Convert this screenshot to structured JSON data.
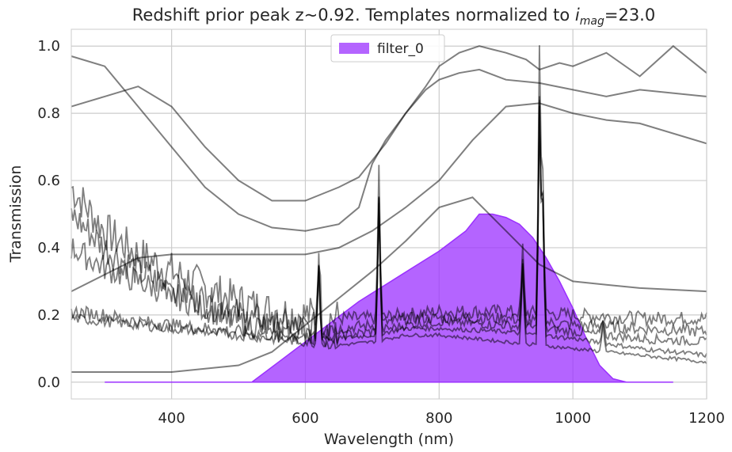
{
  "chart_data": {
    "type": "area",
    "title": "Redshift prior peak z~0.92. Templates normalized to ",
    "title_math_base": "i",
    "title_math_sub": "mag",
    "title_suffix": "=23.0",
    "xlabel": "Wavelength (nm)",
    "ylabel": "Transmission",
    "xlim": [
      250,
      1200
    ],
    "ylim": [
      -0.05,
      1.05
    ],
    "xticks": [
      400,
      600,
      800,
      1000,
      1200
    ],
    "yticks": [
      0.0,
      0.2,
      0.4,
      0.6,
      0.8,
      1.0
    ],
    "xtick_labels": [
      "400",
      "600",
      "800",
      "1000",
      "1200"
    ],
    "ytick_labels": [
      "0.0",
      "0.2",
      "0.4",
      "0.6",
      "0.8",
      "1.0"
    ],
    "grid": true,
    "legend": {
      "position": "top-center",
      "entries": [
        "filter_0"
      ]
    },
    "filter": {
      "name": "filter_0",
      "color": "#9b30ff",
      "x": [
        300,
        520,
        560,
        600,
        640,
        680,
        720,
        760,
        800,
        840,
        860,
        880,
        900,
        920,
        940,
        960,
        980,
        1000,
        1020,
        1040,
        1060,
        1080,
        1100,
        1150
      ],
      "y": [
        0.0,
        0.0,
        0.06,
        0.12,
        0.18,
        0.24,
        0.29,
        0.34,
        0.39,
        0.45,
        0.5,
        0.5,
        0.49,
        0.47,
        0.43,
        0.37,
        0.3,
        0.22,
        0.13,
        0.05,
        0.01,
        0.0,
        0.0,
        0.0
      ]
    },
    "templates": {
      "color": "#000000",
      "opacity": 0.5,
      "series": [
        {
          "x": [
            250,
            300,
            350,
            400,
            450,
            500,
            550,
            600,
            650,
            680,
            700,
            720,
            750,
            780,
            800,
            830,
            860,
            880,
            900,
            930,
            950,
            980,
            1000,
            1050,
            1100,
            1150,
            1200
          ],
          "y": [
            0.97,
            0.94,
            0.82,
            0.7,
            0.58,
            0.5,
            0.46,
            0.45,
            0.47,
            0.52,
            0.65,
            0.72,
            0.8,
            0.88,
            0.94,
            0.98,
            1.0,
            0.99,
            0.98,
            0.96,
            0.93,
            0.95,
            0.94,
            0.98,
            0.91,
            1.0,
            0.92
          ]
        },
        {
          "x": [
            250,
            300,
            350,
            400,
            450,
            500,
            550,
            600,
            650,
            680,
            700,
            720,
            750,
            780,
            800,
            830,
            860,
            900,
            950,
            1000,
            1050,
            1100,
            1200
          ],
          "y": [
            0.82,
            0.85,
            0.88,
            0.82,
            0.7,
            0.6,
            0.54,
            0.54,
            0.58,
            0.61,
            0.66,
            0.71,
            0.8,
            0.87,
            0.9,
            0.92,
            0.93,
            0.9,
            0.89,
            0.87,
            0.85,
            0.87,
            0.85
          ]
        },
        {
          "x": [
            250,
            300,
            350,
            400,
            450,
            500,
            550,
            600,
            650,
            700,
            750,
            800,
            850,
            900,
            950,
            1000,
            1050,
            1100,
            1200
          ],
          "y": [
            0.27,
            0.32,
            0.37,
            0.38,
            0.38,
            0.38,
            0.38,
            0.38,
            0.4,
            0.45,
            0.52,
            0.6,
            0.72,
            0.82,
            0.83,
            0.8,
            0.78,
            0.77,
            0.71
          ]
        },
        {
          "x": [
            250,
            300,
            350,
            400,
            450,
            500,
            550,
            600,
            650,
            700,
            750,
            800,
            850,
            900,
            950,
            1000,
            1050,
            1100,
            1200
          ],
          "y": [
            0.03,
            0.03,
            0.03,
            0.03,
            0.04,
            0.05,
            0.09,
            0.17,
            0.25,
            0.33,
            0.42,
            0.52,
            0.55,
            0.45,
            0.35,
            0.3,
            0.29,
            0.28,
            0.27
          ]
        }
      ],
      "noisy_series": [
        {
          "base": [
            [
              250,
              0.58
            ],
            [
              300,
              0.45
            ],
            [
              350,
              0.38
            ],
            [
              400,
              0.33
            ],
            [
              450,
              0.28
            ],
            [
              500,
              0.24
            ],
            [
              550,
              0.21
            ],
            [
              600,
              0.2
            ],
            [
              650,
              0.19
            ],
            [
              700,
              0.19
            ],
            [
              750,
              0.2
            ],
            [
              800,
              0.21
            ],
            [
              900,
              0.21
            ],
            [
              1000,
              0.2
            ],
            [
              1100,
              0.19
            ],
            [
              1200,
              0.19
            ]
          ],
          "noise": 0.06
        },
        {
          "base": [
            [
              250,
              0.5
            ],
            [
              300,
              0.4
            ],
            [
              350,
              0.33
            ],
            [
              400,
              0.28
            ],
            [
              450,
              0.24
            ],
            [
              500,
              0.2
            ],
            [
              550,
              0.17
            ],
            [
              600,
              0.16
            ],
            [
              650,
              0.16
            ],
            [
              700,
              0.17
            ],
            [
              750,
              0.19
            ],
            [
              800,
              0.19
            ],
            [
              900,
              0.19
            ],
            [
              1000,
              0.17
            ],
            [
              1100,
              0.16
            ],
            [
              1200,
              0.15
            ]
          ],
          "noise": 0.05
        },
        {
          "base": [
            [
              250,
              0.4
            ],
            [
              300,
              0.34
            ],
            [
              350,
              0.3
            ],
            [
              400,
              0.26
            ],
            [
              450,
              0.22
            ],
            [
              500,
              0.18
            ],
            [
              550,
              0.16
            ],
            [
              600,
              0.15
            ],
            [
              650,
              0.14
            ],
            [
              700,
              0.15
            ],
            [
              750,
              0.17
            ],
            [
              800,
              0.18
            ],
            [
              900,
              0.17
            ],
            [
              1000,
              0.15
            ],
            [
              1100,
              0.13
            ],
            [
              1200,
              0.12
            ]
          ],
          "noise": 0.04
        },
        {
          "base": [
            [
              250,
              0.21
            ],
            [
              300,
              0.2
            ],
            [
              350,
              0.18
            ],
            [
              400,
              0.17
            ],
            [
              450,
              0.16
            ],
            [
              500,
              0.15
            ],
            [
              550,
              0.14
            ],
            [
              600,
              0.14
            ],
            [
              650,
              0.13
            ],
            [
              700,
              0.14
            ],
            [
              750,
              0.16
            ],
            [
              800,
              0.16
            ],
            [
              900,
              0.15
            ],
            [
              1000,
              0.13
            ],
            [
              1100,
              0.1
            ],
            [
              1200,
              0.08
            ]
          ],
          "noise": 0.02
        },
        {
          "base": [
            [
              250,
              0.19
            ],
            [
              300,
              0.18
            ],
            [
              350,
              0.17
            ],
            [
              400,
              0.16
            ],
            [
              450,
              0.15
            ],
            [
              500,
              0.14
            ],
            [
              550,
              0.13
            ],
            [
              600,
              0.12
            ],
            [
              650,
              0.11
            ],
            [
              700,
              0.12
            ],
            [
              750,
              0.14
            ],
            [
              800,
              0.14
            ],
            [
              900,
              0.12
            ],
            [
              1000,
              0.1
            ],
            [
              1100,
              0.08
            ],
            [
              1200,
              0.06
            ]
          ],
          "noise": 0.015
        }
      ],
      "emission_lines": [
        {
          "x": 710,
          "peak": 0.64
        },
        {
          "x": 925,
          "peak": 0.4
        },
        {
          "x": 950,
          "peak": 1.0
        },
        {
          "x": 955,
          "peak": 0.65
        },
        {
          "x": 620,
          "peak": 0.4
        },
        {
          "x": 1045,
          "peak": 0.2
        }
      ]
    }
  }
}
